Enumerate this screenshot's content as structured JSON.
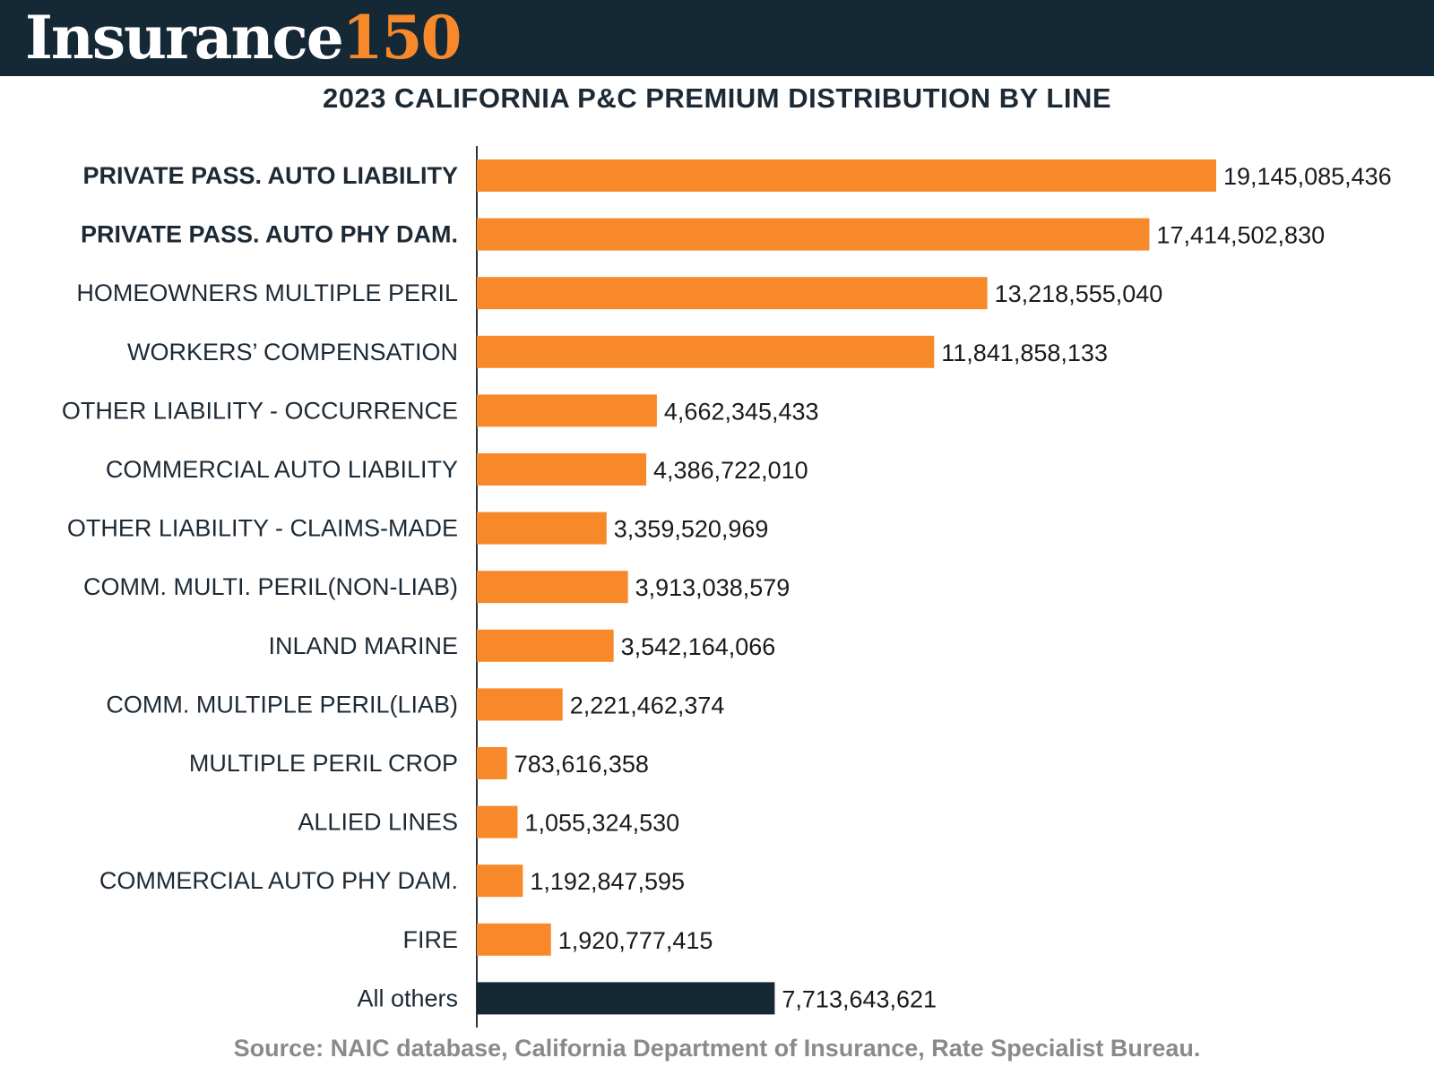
{
  "header": {
    "logo_word": "Insurance",
    "logo_number": "150",
    "bg_color": "#152835",
    "accent_color": "#f7892a"
  },
  "chart_data": {
    "type": "bar",
    "orientation": "horizontal",
    "title": "2023 CALIFORNIA P&C PREMIUM DISTRIBUTION BY LINE",
    "categories": [
      "PRIVATE PASS. AUTO LIABILITY",
      "PRIVATE PASS. AUTO PHY DAM.",
      "HOMEOWNERS MULTIPLE PERIL",
      "WORKERS’ COMPENSATION",
      "OTHER LIABILITY - OCCURRENCE",
      "COMMERCIAL AUTO LIABILITY",
      "OTHER LIABILITY - CLAIMS-MADE",
      "COMM. MULTI. PERIL(NON-LIAB)",
      "INLAND MARINE",
      "COMM. MULTIPLE PERIL(LIAB)",
      "MULTIPLE PERIL CROP",
      "ALLIED LINES",
      "COMMERCIAL AUTO PHY DAM.",
      "FIRE",
      "All others"
    ],
    "values": [
      19145085436,
      17414502830,
      13218555040,
      11841858133,
      4662345433,
      4386722010,
      3359520969,
      3913038579,
      3542164066,
      2221462374,
      783616358,
      1055324530,
      1192847595,
      1920777415,
      7713643621
    ],
    "value_labels": [
      "19,145,085,436",
      "17,414,502,830",
      "13,218,555,040",
      "11,841,858,133",
      "4,662,345,433",
      "4,386,722,010",
      "3,359,520,969",
      "3,913,038,579",
      "3,542,164,066",
      "2,221,462,374",
      "783,616,358",
      "1,055,324,530",
      "1,192,847,595",
      "1,920,777,415",
      "7,713,643,621"
    ],
    "bold_categories": [
      0,
      1
    ],
    "bar_colors": [
      "#f7892a",
      "#f7892a",
      "#f7892a",
      "#f7892a",
      "#f7892a",
      "#f7892a",
      "#f7892a",
      "#f7892a",
      "#f7892a",
      "#f7892a",
      "#f7892a",
      "#f7892a",
      "#f7892a",
      "#f7892a",
      "#152835"
    ],
    "xlim": [
      0,
      19145085436
    ],
    "grid": false,
    "legend": "none"
  },
  "footer": {
    "source": "Source: NAIC database, California Department of Insurance, Rate Specialist Bureau."
  }
}
